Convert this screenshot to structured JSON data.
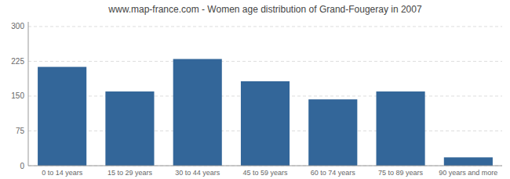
{
  "chart_data": {
    "type": "bar",
    "title": "www.map-france.com - Women age distribution of Grand-Fougeray in 2007",
    "categories": [
      "0 to 14 years",
      "15 to 29 years",
      "30 to 44 years",
      "45 to 59 years",
      "60 to 74 years",
      "75 to 89 years",
      "90 years and more"
    ],
    "values": [
      213,
      160,
      230,
      182,
      143,
      160,
      18
    ],
    "color": "#336699",
    "ylim": [
      0,
      310
    ],
    "yticks": [
      0,
      75,
      150,
      225,
      300
    ],
    "grid": true
  }
}
